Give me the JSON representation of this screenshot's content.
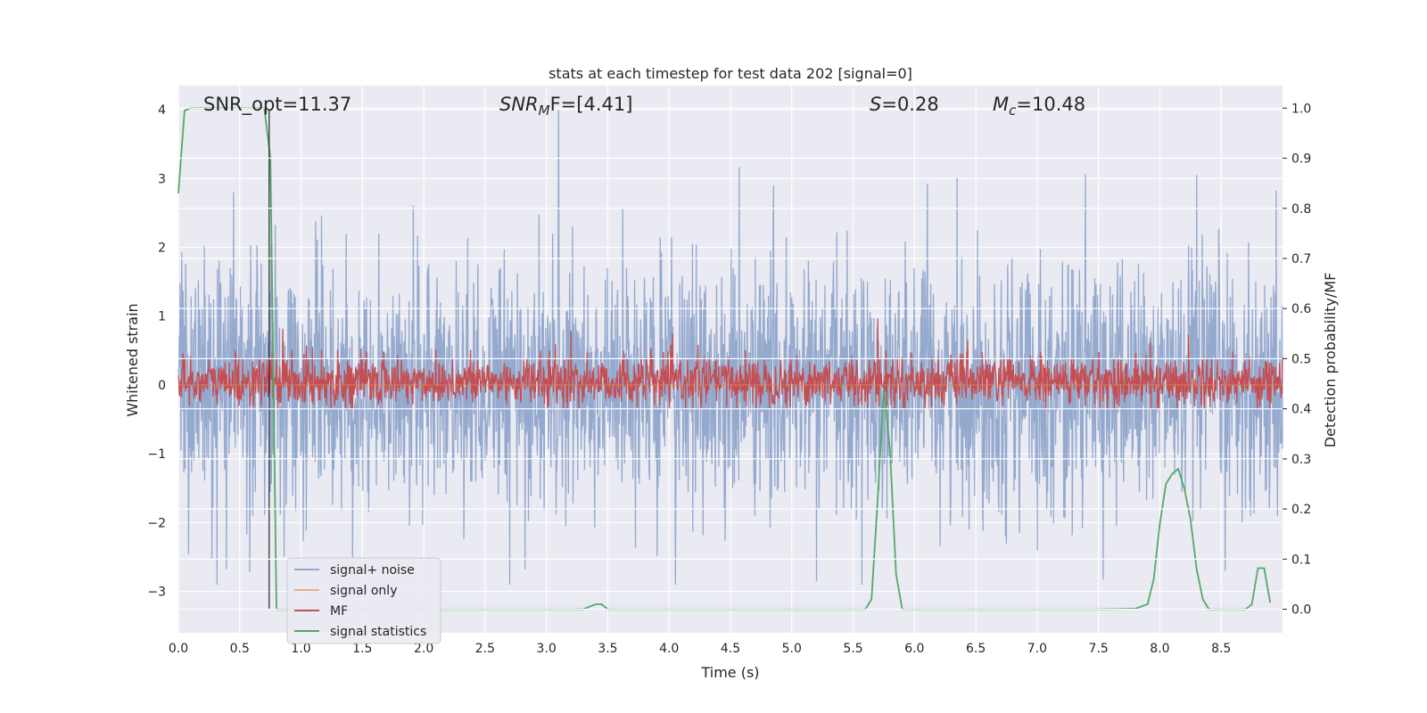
{
  "chart_data": {
    "type": "line",
    "title": "stats at each timestep for test data 202 [signal=0]",
    "xlabel": "Time (s)",
    "ylabel": "Whitened strain",
    "ylabel_right": "Detection probability/MF",
    "xlim": [
      0.0,
      9.0
    ],
    "ylim": [
      -3.6,
      4.35
    ],
    "ylim_right": [
      -0.047,
      1.045
    ],
    "xticks": [
      "0.0",
      "0.5",
      "1.0",
      "1.5",
      "2.0",
      "2.5",
      "3.0",
      "3.5",
      "4.0",
      "4.5",
      "5.0",
      "5.5",
      "6.0",
      "6.5",
      "7.0",
      "7.5",
      "8.0",
      "8.5"
    ],
    "yticks": [
      "−3",
      "−2",
      "−1",
      "0",
      "1",
      "2",
      "3",
      "4"
    ],
    "yticks_right": [
      "0.0",
      "0.1",
      "0.2",
      "0.3",
      "0.4",
      "0.5",
      "0.6",
      "0.7",
      "0.8",
      "0.9",
      "1.0"
    ],
    "grid": true,
    "legend_placement": "lower-left",
    "annotations": {
      "snr_opt": "SNR_opt=11.37",
      "snr_mf_sym": "SNR",
      "snr_mf_sub": "M",
      "snr_mf_rest": "F=[4.41]",
      "s_sym": "S",
      "s_rest": "=0.28",
      "mc_sym": "M",
      "mc_sub": "c",
      "mc_rest": "=10.48"
    },
    "marker_time": 0.74,
    "series": [
      {
        "name": "signal+ noise",
        "color": "#4c72b0",
        "axis": "left",
        "description_stats": {
          "mean": 0.0,
          "std": 0.9,
          "max": 4.0,
          "min": -2.9
        },
        "peaks": [
          [
            0.45,
            2.8
          ],
          [
            3.1,
            4.0
          ],
          [
            3.05,
            2.2
          ],
          [
            2.7,
            -2.9
          ],
          [
            5.2,
            -2.85
          ],
          [
            8.3,
            3.05
          ],
          [
            4.85,
            2.9
          ]
        ]
      },
      {
        "name": "signal only",
        "color": "#dd8452",
        "axis": "left",
        "x": [
          0.0,
          9.0
        ],
        "y": [
          0.0,
          0.0
        ]
      },
      {
        "name": "MF",
        "color": "#c44e52",
        "axis": "right",
        "baseline": 0.455,
        "peaks": [
          [
            5.7,
            0.58
          ],
          [
            0.85,
            0.56
          ],
          [
            3.2,
            0.555
          ]
        ]
      },
      {
        "name": "signal statistics",
        "color": "#55a868",
        "axis": "right",
        "x": [
          0.0,
          0.05,
          0.1,
          0.15,
          0.2,
          0.3,
          0.4,
          0.5,
          0.6,
          0.7,
          0.75,
          0.8,
          0.85,
          1.0,
          2.0,
          3.0,
          3.3,
          3.4,
          3.45,
          3.5,
          4.0,
          5.0,
          5.5,
          5.6,
          5.65,
          5.7,
          5.75,
          5.8,
          5.85,
          5.9,
          6.0,
          7.0,
          7.5,
          7.8,
          7.9,
          7.95,
          8.0,
          8.05,
          8.1,
          8.15,
          8.2,
          8.25,
          8.3,
          8.35,
          8.4,
          8.5,
          8.7,
          8.75,
          8.8,
          8.85,
          8.9
        ],
        "y": [
          0.83,
          0.995,
          1.0,
          1.0,
          1.0,
          1.0,
          1.0,
          1.0,
          1.0,
          1.0,
          0.9,
          0.0,
          0.0,
          0.0,
          0.0,
          0.0,
          0.0,
          0.01,
          0.01,
          0.0,
          0.0,
          0.0,
          0.0,
          0.0,
          0.02,
          0.22,
          0.44,
          0.32,
          0.07,
          0.0,
          0.0,
          0.0,
          0.0,
          0.001,
          0.01,
          0.06,
          0.17,
          0.25,
          0.27,
          0.28,
          0.24,
          0.18,
          0.08,
          0.02,
          0.0,
          0.0,
          0.0,
          0.01,
          0.082,
          0.082,
          0.013
        ]
      }
    ]
  }
}
